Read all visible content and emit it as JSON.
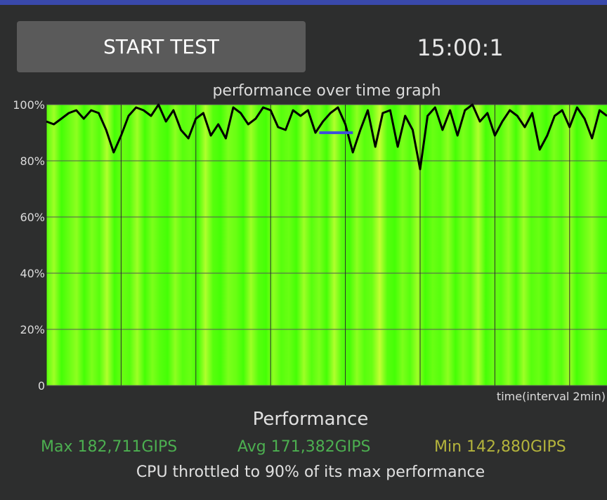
{
  "colors": {
    "topbar": "#3949ab",
    "background": "#2d2e2e",
    "plot_background": "#f0efdc",
    "band_green": "#33ff00",
    "band_yellow": "#e6ff40",
    "line": "#000000",
    "marker": "#3f51d8",
    "max_color": "#4caf50",
    "avg_color": "#4caf50",
    "min_color": "#b4b43c"
  },
  "header": {
    "start_button_label": "START TEST",
    "timer": "15:00:1"
  },
  "chart_data": {
    "type": "area",
    "title": "performance over time graph",
    "xlabel": "time(interval 2min)",
    "ylabel": "",
    "y_tick_labels": [
      "100%",
      "80%",
      "60%",
      "40%",
      "20%",
      "0"
    ],
    "y_ticks": [
      100,
      80,
      60,
      40,
      20,
      0
    ],
    "ylim": [
      0,
      100
    ],
    "x_unit": "min",
    "xlim": [
      0,
      15
    ],
    "x_grid_step": 2,
    "data_end": 15,
    "grid": true,
    "average_marker": {
      "value": 90,
      "x_start": 7.3,
      "x_end": 8.2
    },
    "series": [
      {
        "x": [
          0,
          0.2,
          0.4,
          0.6,
          0.8,
          1.0,
          1.2,
          1.4,
          1.6,
          1.8,
          2.0,
          2.2,
          2.4,
          2.6,
          2.8,
          3.0,
          3.2,
          3.4,
          3.6,
          3.8,
          4.0,
          4.2,
          4.4,
          4.6,
          4.8,
          5.0,
          5.2,
          5.4,
          5.6,
          5.8,
          6.0,
          6.2,
          6.4,
          6.6,
          6.8,
          7.0,
          7.2,
          7.4,
          7.6,
          7.8,
          8.0,
          8.2,
          8.4,
          8.6,
          8.8,
          9.0,
          9.2,
          9.4,
          9.6,
          9.8,
          10.0,
          10.2,
          10.4,
          10.6,
          10.8,
          11.0,
          11.2,
          11.4,
          11.6,
          11.8,
          12.0,
          12.2,
          12.4,
          12.6,
          12.8,
          13.0,
          13.2,
          13.4,
          13.6,
          13.8,
          14.0,
          14.2,
          14.4,
          14.6,
          14.8,
          15.0
        ],
        "values": [
          94,
          93,
          95,
          97,
          98,
          95,
          98,
          97,
          91,
          83,
          89,
          96,
          99,
          98,
          96,
          100,
          94,
          98,
          91,
          88,
          95,
          97,
          89,
          93,
          88,
          99,
          97,
          93,
          95,
          99,
          98,
          92,
          91,
          98,
          96,
          98,
          90,
          94,
          97,
          99,
          93,
          83,
          91,
          98,
          85,
          97,
          98,
          85,
          96,
          91,
          77,
          96,
          99,
          91,
          98,
          89,
          98,
          100,
          94,
          97,
          89,
          94,
          98,
          96,
          92,
          97,
          84,
          89,
          96,
          98,
          92,
          99,
          95,
          88,
          98,
          96
        ]
      }
    ],
    "band_intensity": [
      0.2,
      0.6,
      0.1,
      0.3,
      0.5,
      0.1,
      0.4,
      0.2,
      0.7,
      0.1,
      0.3,
      0.2,
      0.6,
      0.1,
      0.4,
      0.2,
      0.1,
      0.5,
      0.2,
      0.3,
      0.1,
      0.7,
      0.2,
      0.1,
      0.4,
      0.3,
      0.1,
      0.6,
      0.2,
      0.1,
      0.5,
      0.2,
      0.3,
      0.1,
      0.6,
      0.2,
      0.4,
      0.1,
      0.7,
      0.2,
      0.1,
      0.5,
      0.2,
      0.3,
      0.8,
      0.2,
      0.1,
      0.4,
      0.2,
      0.6,
      0.1,
      0.3,
      0.2,
      0.5,
      0.1,
      0.4,
      0.2,
      0.7,
      0.1,
      0.3,
      0.2,
      0.5,
      0.1,
      0.6,
      0.2,
      0.3,
      0.1,
      0.4,
      0.2,
      0.6,
      0.1,
      0.3,
      0.5,
      0.2,
      0.1
    ]
  },
  "performance": {
    "heading": "Performance",
    "max": "Max 182,711GIPS",
    "avg": "Avg 171,382GIPS",
    "min": "Min 142,880GIPS",
    "summary": "CPU throttled to 90% of its max performance"
  }
}
